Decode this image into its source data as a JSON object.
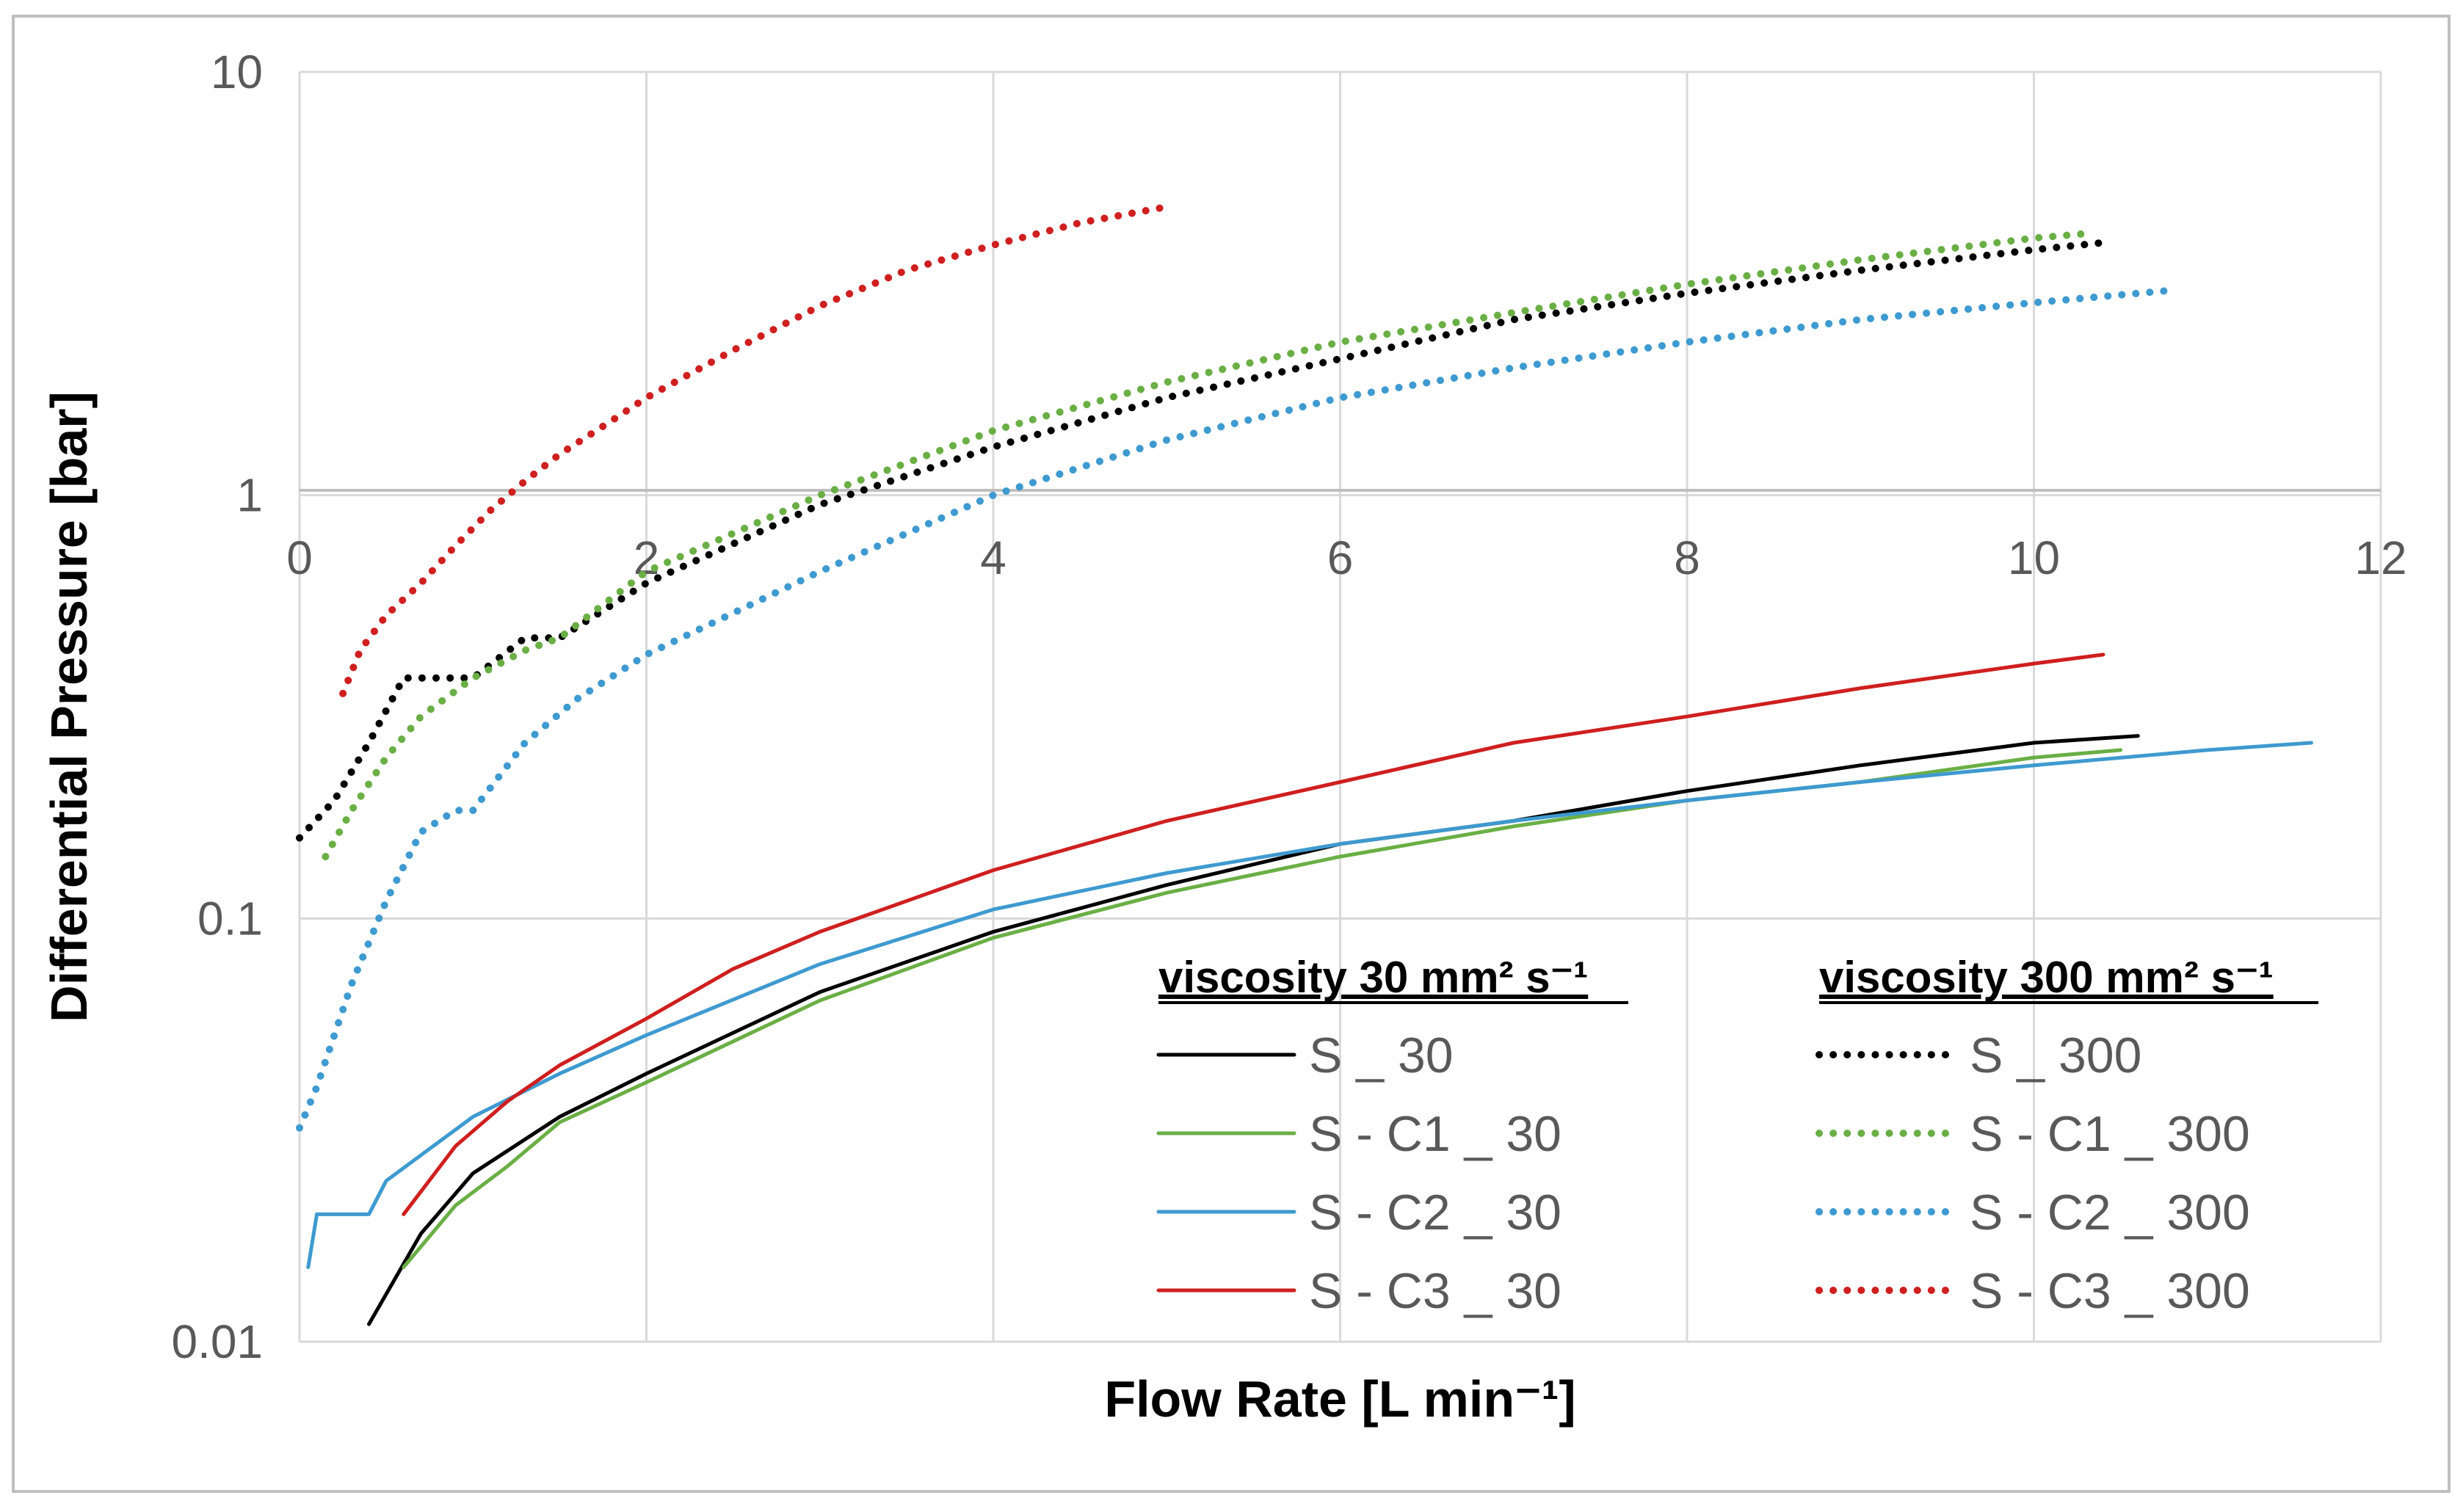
{
  "chart_data": {
    "type": "line",
    "xlabel": "Flow Rate [L min⁻¹]",
    "ylabel": "Differential Pressure [bar]",
    "xlim": [
      0,
      12
    ],
    "ylim": [
      0.01,
      10
    ],
    "yscale": "log",
    "x_ticks": [
      "0",
      "2",
      "4",
      "6",
      "8",
      "10",
      "12"
    ],
    "y_ticks": [
      "10",
      "1",
      "0.1",
      "0.01"
    ],
    "grid": true,
    "legend_position": "lower-right",
    "legend_groups": [
      {
        "heading": "viscosity 30 mm² s⁻¹",
        "style": "solid"
      },
      {
        "heading": "viscosity 300 mm² s⁻¹",
        "style": "dotted"
      }
    ],
    "series": [
      {
        "name": "S _ 30",
        "group": 0,
        "color": "#000000",
        "style": "solid",
        "x": [
          0.4,
          0.7,
          1.0,
          1.5,
          2.0,
          3.0,
          4.0,
          5.0,
          6.0,
          7.0,
          8.0,
          9.0,
          10.0,
          10.6
        ],
        "y": [
          0.011,
          0.018,
          0.025,
          0.034,
          0.043,
          0.067,
          0.093,
          0.12,
          0.15,
          0.17,
          0.2,
          0.23,
          0.26,
          0.27
        ]
      },
      {
        "name": "S - C1 _ 30",
        "group": 0,
        "color": "#6aaf45",
        "style": "solid",
        "x": [
          0.6,
          0.9,
          1.2,
          1.5,
          2.0,
          3.0,
          4.0,
          5.0,
          6.0,
          7.0,
          8.0,
          9.0,
          10.0,
          10.5
        ],
        "y": [
          0.015,
          0.021,
          0.026,
          0.033,
          0.041,
          0.064,
          0.09,
          0.115,
          0.14,
          0.165,
          0.19,
          0.21,
          0.24,
          0.25
        ]
      },
      {
        "name": "S - C2 _ 30",
        "group": 0,
        "color": "#3e9ad0",
        "style": "solid",
        "x": [
          0.05,
          0.1,
          0.4,
          0.5,
          1.0,
          1.5,
          2.0,
          3.0,
          4.0,
          5.0,
          6.0,
          7.0,
          8.0,
          9.0,
          10.0,
          11.0,
          11.6
        ],
        "y": [
          0.015,
          0.02,
          0.02,
          0.024,
          0.034,
          0.043,
          0.053,
          0.078,
          0.105,
          0.128,
          0.15,
          0.17,
          0.19,
          0.21,
          0.23,
          0.25,
          0.26
        ]
      },
      {
        "name": "S - C3 _ 30",
        "group": 0,
        "color": "#cf1f1f",
        "style": "solid",
        "x": [
          0.6,
          0.9,
          1.2,
          1.5,
          2.0,
          2.5,
          3.0,
          4.0,
          5.0,
          6.0,
          7.0,
          8.0,
          9.0,
          10.0,
          10.4
        ],
        "y": [
          0.02,
          0.029,
          0.037,
          0.045,
          0.058,
          0.076,
          0.093,
          0.13,
          0.17,
          0.21,
          0.26,
          0.3,
          0.35,
          0.4,
          0.42
        ]
      },
      {
        "name": "S _ 300",
        "group": 1,
        "color": "#000000",
        "style": "dotted",
        "x": [
          0.0,
          0.2,
          0.4,
          0.6,
          0.8,
          1.0,
          1.3,
          1.5,
          2.0,
          3.0,
          4.0,
          5.0,
          6.0,
          7.0,
          8.0,
          9.0,
          10.0,
          10.4
        ],
        "y": [
          0.155,
          0.19,
          0.26,
          0.37,
          0.37,
          0.37,
          0.46,
          0.46,
          0.62,
          0.95,
          1.3,
          1.7,
          2.1,
          2.6,
          3.0,
          3.4,
          3.8,
          3.95
        ]
      },
      {
        "name": "S - C1 _ 300",
        "group": 1,
        "color": "#6aaf45",
        "style": "dotted",
        "x": [
          0.15,
          0.3,
          0.5,
          0.7,
          1.0,
          1.3,
          1.5,
          2.0,
          3.0,
          4.0,
          5.0,
          6.0,
          7.0,
          8.0,
          9.0,
          10.0,
          10.3
        ],
        "y": [
          0.14,
          0.18,
          0.24,
          0.3,
          0.37,
          0.43,
          0.46,
          0.66,
          1.0,
          1.42,
          1.85,
          2.3,
          2.7,
          3.15,
          3.6,
          4.05,
          4.15
        ]
      },
      {
        "name": "S - C2 _ 300",
        "group": 1,
        "color": "#3e9ad0",
        "style": "dotted",
        "x": [
          0.0,
          0.1,
          0.3,
          0.5,
          0.7,
          0.9,
          1.0,
          1.3,
          1.6,
          2.0,
          3.0,
          4.0,
          5.0,
          6.0,
          7.0,
          8.0,
          9.0,
          10.0,
          10.8
        ],
        "y": [
          0.032,
          0.04,
          0.07,
          0.11,
          0.16,
          0.18,
          0.18,
          0.26,
          0.33,
          0.42,
          0.66,
          1.0,
          1.35,
          1.7,
          2.0,
          2.3,
          2.6,
          2.85,
          3.05
        ]
      },
      {
        "name": "S - C3 _ 300",
        "group": 1,
        "color": "#cf1f1f",
        "style": "dotted",
        "x": [
          0.25,
          0.35,
          0.5,
          0.7,
          0.9,
          1.1,
          1.3,
          1.5,
          1.8,
          2.0,
          2.5,
          3.0,
          3.5,
          4.0,
          4.5,
          5.0
        ],
        "y": [
          0.34,
          0.43,
          0.52,
          0.62,
          0.76,
          0.92,
          1.08,
          1.25,
          1.5,
          1.7,
          2.2,
          2.8,
          3.4,
          3.9,
          4.4,
          4.8
        ]
      }
    ]
  }
}
